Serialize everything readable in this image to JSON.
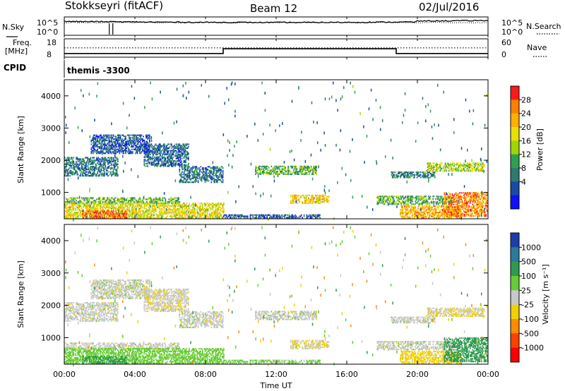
{
  "header": {
    "station": "Stokkseyri (fitACF)",
    "beam": "Beam 12",
    "date": "02/Jul/2016"
  },
  "noise_panel": {
    "left_label": "N.Sky",
    "left_ticks": [
      "10^5",
      "10^0"
    ],
    "right_ticks": [
      "10^5",
      "10^0"
    ],
    "right_label": "N.Search"
  },
  "freq_panel": {
    "left_label_1": "Freq.",
    "left_label_2": "[MHz]",
    "left_ticks": [
      "18",
      "8"
    ],
    "right_ticks": [
      "60",
      "0"
    ],
    "right_label": "Nave"
  },
  "cpid": {
    "label": "CPID",
    "value": "themis -3300"
  },
  "power_panel": {
    "ylabel": "Slant Range [km]",
    "cbar_label": "Power [dB]",
    "cbar_ticks": [
      "28",
      "24",
      "20",
      "16",
      "12",
      "8",
      "4"
    ],
    "cbar_colors": [
      "#ff1a1a",
      "#ff7f00",
      "#ffb000",
      "#e8e000",
      "#9ed600",
      "#2ea050",
      "#2e7a70",
      "#1a4aa8",
      "#1010ff"
    ]
  },
  "velocity_panel": {
    "ylabel": "Slant Range [km]",
    "cbar_label": "Velocity [m s⁻¹]",
    "cbar_ticks": [
      "1000",
      "500",
      "100",
      "25",
      "-25",
      "-100",
      "-500",
      "-1000"
    ],
    "cbar_colors": [
      "#1b3fa8",
      "#2b7a9a",
      "#2e9a50",
      "#66cc33",
      "#c8c8c8",
      "#f0d000",
      "#ff8c00",
      "#ff4000",
      "#ff0000"
    ]
  },
  "x_axis": {
    "label": "Time UT",
    "ticks": [
      "00:00",
      "04:00",
      "08:00",
      "12:00",
      "16:00",
      "20:00",
      "00:00"
    ]
  },
  "chart_data": {
    "type": "heatmap",
    "x_range_hours": [
      0,
      24
    ],
    "y_range_km": [
      180,
      4500
    ],
    "y_ticks_km": [
      1000,
      2000,
      3000,
      4000
    ],
    "power_range_db": [
      0,
      30
    ],
    "velocity_range": [
      -1000,
      1000
    ],
    "freq_steps": [
      {
        "start": 0,
        "end": 9.0,
        "freq": 10.0
      },
      {
        "start": 9.0,
        "end": 18.8,
        "freq": 12.6
      },
      {
        "start": 18.8,
        "end": 24,
        "freq": 10.0
      }
    ],
    "nave_level": 5,
    "noise_level": 4.2,
    "backscatter_bands": [
      {
        "t0": 0.0,
        "t1": 3.0,
        "r0": 1500,
        "r1": 2100,
        "power": 8,
        "vel": 0
      },
      {
        "t0": 1.5,
        "t1": 4.8,
        "r0": 2200,
        "r1": 2800,
        "power": 6,
        "vel": 0
      },
      {
        "t0": 4.5,
        "t1": 7.0,
        "r0": 1800,
        "r1": 2500,
        "power": 7,
        "vel": -10
      },
      {
        "t0": 6.5,
        "t1": 9.0,
        "r0": 1300,
        "r1": 1800,
        "power": 8,
        "vel": 0
      },
      {
        "t0": 10.8,
        "t1": 14.3,
        "r0": 1550,
        "r1": 1800,
        "power": 12,
        "vel": 0
      },
      {
        "t0": 0.0,
        "t1": 6.5,
        "r0": 650,
        "r1": 850,
        "power": 12,
        "vel": 0
      },
      {
        "t0": 0.0,
        "t1": 9.0,
        "r0": 200,
        "r1": 650,
        "power": 18,
        "vel": 60
      },
      {
        "t0": 1.0,
        "t1": 3.5,
        "r0": 200,
        "r1": 420,
        "power": 26,
        "vel": 120
      },
      {
        "t0": 9.0,
        "t1": 14.5,
        "r0": 200,
        "r1": 320,
        "power": 6,
        "vel": 40
      },
      {
        "t0": 12.8,
        "t1": 15.0,
        "r0": 650,
        "r1": 900,
        "power": 20,
        "vel": -20
      },
      {
        "t0": 17.7,
        "t1": 22.0,
        "r0": 620,
        "r1": 880,
        "power": 12,
        "vel": 0
      },
      {
        "t0": 19.0,
        "t1": 22.5,
        "r0": 200,
        "r1": 600,
        "power": 22,
        "vel": -50
      },
      {
        "t0": 21.5,
        "t1": 24.0,
        "r0": 250,
        "r1": 1000,
        "power": 24,
        "vel": 400
      },
      {
        "t0": 18.5,
        "t1": 21.0,
        "r0": 1450,
        "r1": 1650,
        "power": 9,
        "vel": 0
      },
      {
        "t0": 20.5,
        "t1": 23.8,
        "r0": 1650,
        "r1": 1900,
        "power": 16,
        "vel": -20
      }
    ]
  }
}
